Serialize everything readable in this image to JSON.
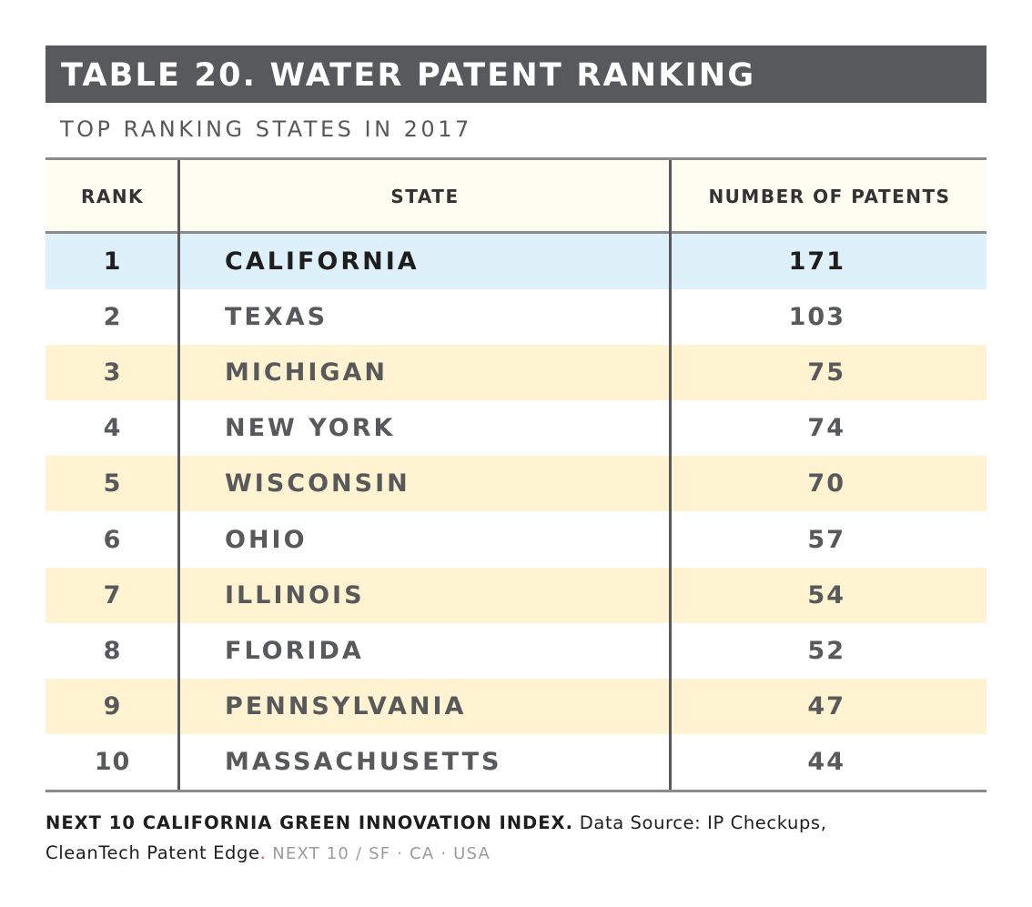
{
  "title": "TABLE 20. WATER PATENT RANKING",
  "subtitle": "TOP RANKING STATES IN 2017",
  "table": {
    "headers": {
      "rank": "RANK",
      "state": "STATE",
      "patents": "NUMBER OF PATENTS"
    },
    "rows": [
      {
        "rank": "1",
        "state": "CALIFORNIA",
        "patents": "171"
      },
      {
        "rank": "2",
        "state": "TEXAS",
        "patents": "103"
      },
      {
        "rank": "3",
        "state": "MICHIGAN",
        "patents": "75"
      },
      {
        "rank": "4",
        "state": "NEW YORK",
        "patents": "74"
      },
      {
        "rank": "5",
        "state": "WISCONSIN",
        "patents": "70"
      },
      {
        "rank": "6",
        "state": "OHIO",
        "patents": "57"
      },
      {
        "rank": "7",
        "state": "ILLINOIS",
        "patents": "54"
      },
      {
        "rank": "8",
        "state": "FLORIDA",
        "patents": "52"
      },
      {
        "rank": "9",
        "state": "PENNSYLVANIA",
        "patents": "47"
      },
      {
        "rank": "10",
        "state": "MASSACHUSETTS",
        "patents": "44"
      }
    ]
  },
  "footer": {
    "org": "NEXT 10 CALIFORNIA GREEN INNOVATION INDEX.",
    "source_line1": "Data Source: IP Checkups,",
    "source_line2": "CleanTech Patent Edge",
    "period": ".",
    "credit": "NEXT 10 / SF · CA · USA"
  },
  "colors": {
    "title_bar": "#58595b",
    "header_bg": "#fffdf2",
    "alt_row_bg": "#fff3d1",
    "highlight_row_bg": "#def1fa",
    "accent_period": "#e0457b"
  }
}
